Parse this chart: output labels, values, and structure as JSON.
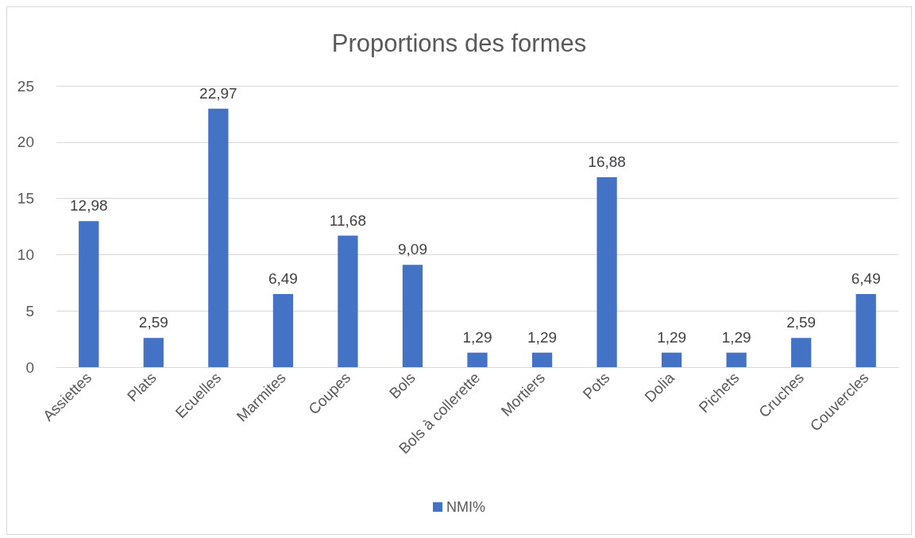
{
  "chart_data": {
    "type": "bar",
    "title": "Proportions des formes",
    "categories": [
      "Assiettes",
      "Plats",
      "Ecuelles",
      "Marmites",
      "Coupes",
      "Bols",
      "Bols à collerette",
      "Mortiers",
      "Pots",
      "Dolia",
      "Pichets",
      "Cruches",
      "Couvercles"
    ],
    "series": [
      {
        "name": "NMI%",
        "color": "#4472c4",
        "values": [
          12.98,
          2.59,
          22.97,
          6.49,
          11.68,
          9.09,
          1.29,
          1.29,
          16.88,
          1.29,
          1.29,
          2.59,
          6.49
        ],
        "value_labels": [
          "12,98",
          "2,59",
          "22,97",
          "6,49",
          "11,68",
          "9,09",
          "1,29",
          "1,29",
          "16,88",
          "1,29",
          "1,29",
          "2,59",
          "6,49"
        ]
      }
    ],
    "ylim": [
      0,
      25
    ],
    "yticks": [
      0,
      5,
      10,
      15,
      20,
      25
    ],
    "grid": "y",
    "legend": "bottom"
  }
}
